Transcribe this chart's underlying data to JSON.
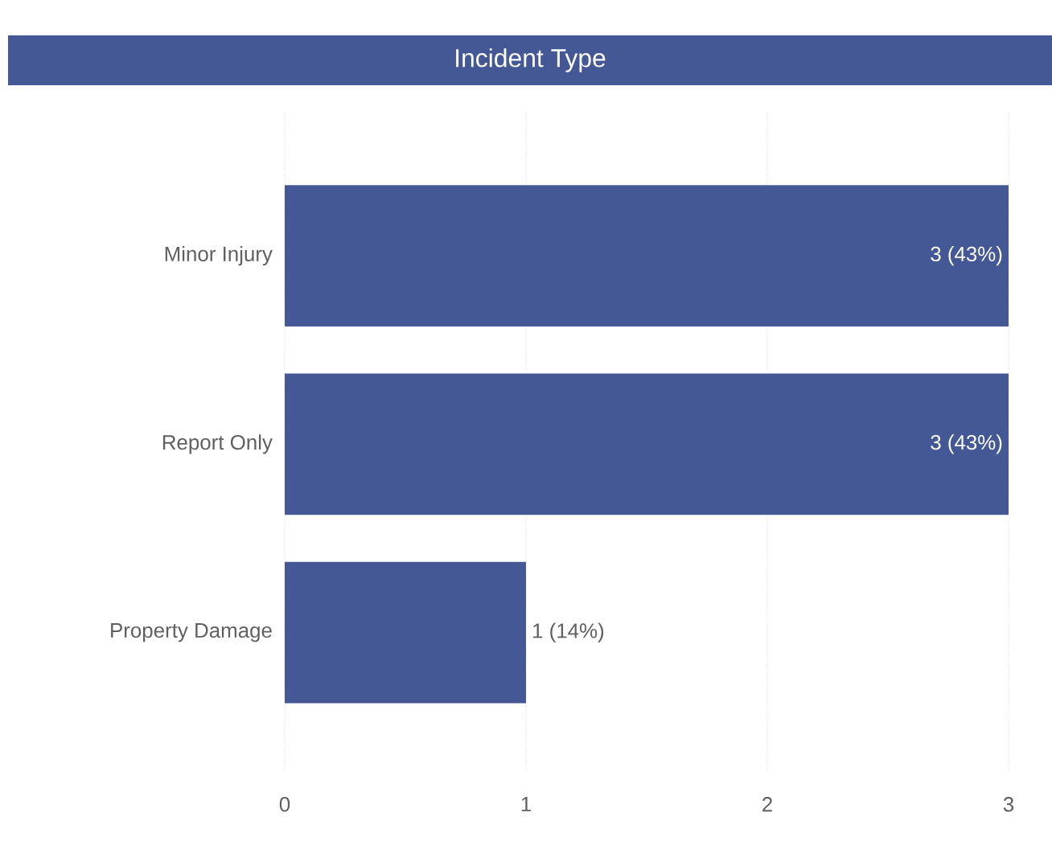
{
  "chart_data": {
    "type": "bar",
    "orientation": "horizontal",
    "title": "Incident Type",
    "categories": [
      "Minor Injury",
      "Report Only",
      "Property Damage"
    ],
    "values": [
      3,
      3,
      1
    ],
    "value_labels": [
      "3 (43%)",
      "3 (43%)",
      "1 (14%)"
    ],
    "color": "#445896",
    "xlim": [
      0,
      3
    ],
    "xticks": [
      0,
      1,
      2,
      3
    ],
    "grid": "x"
  }
}
